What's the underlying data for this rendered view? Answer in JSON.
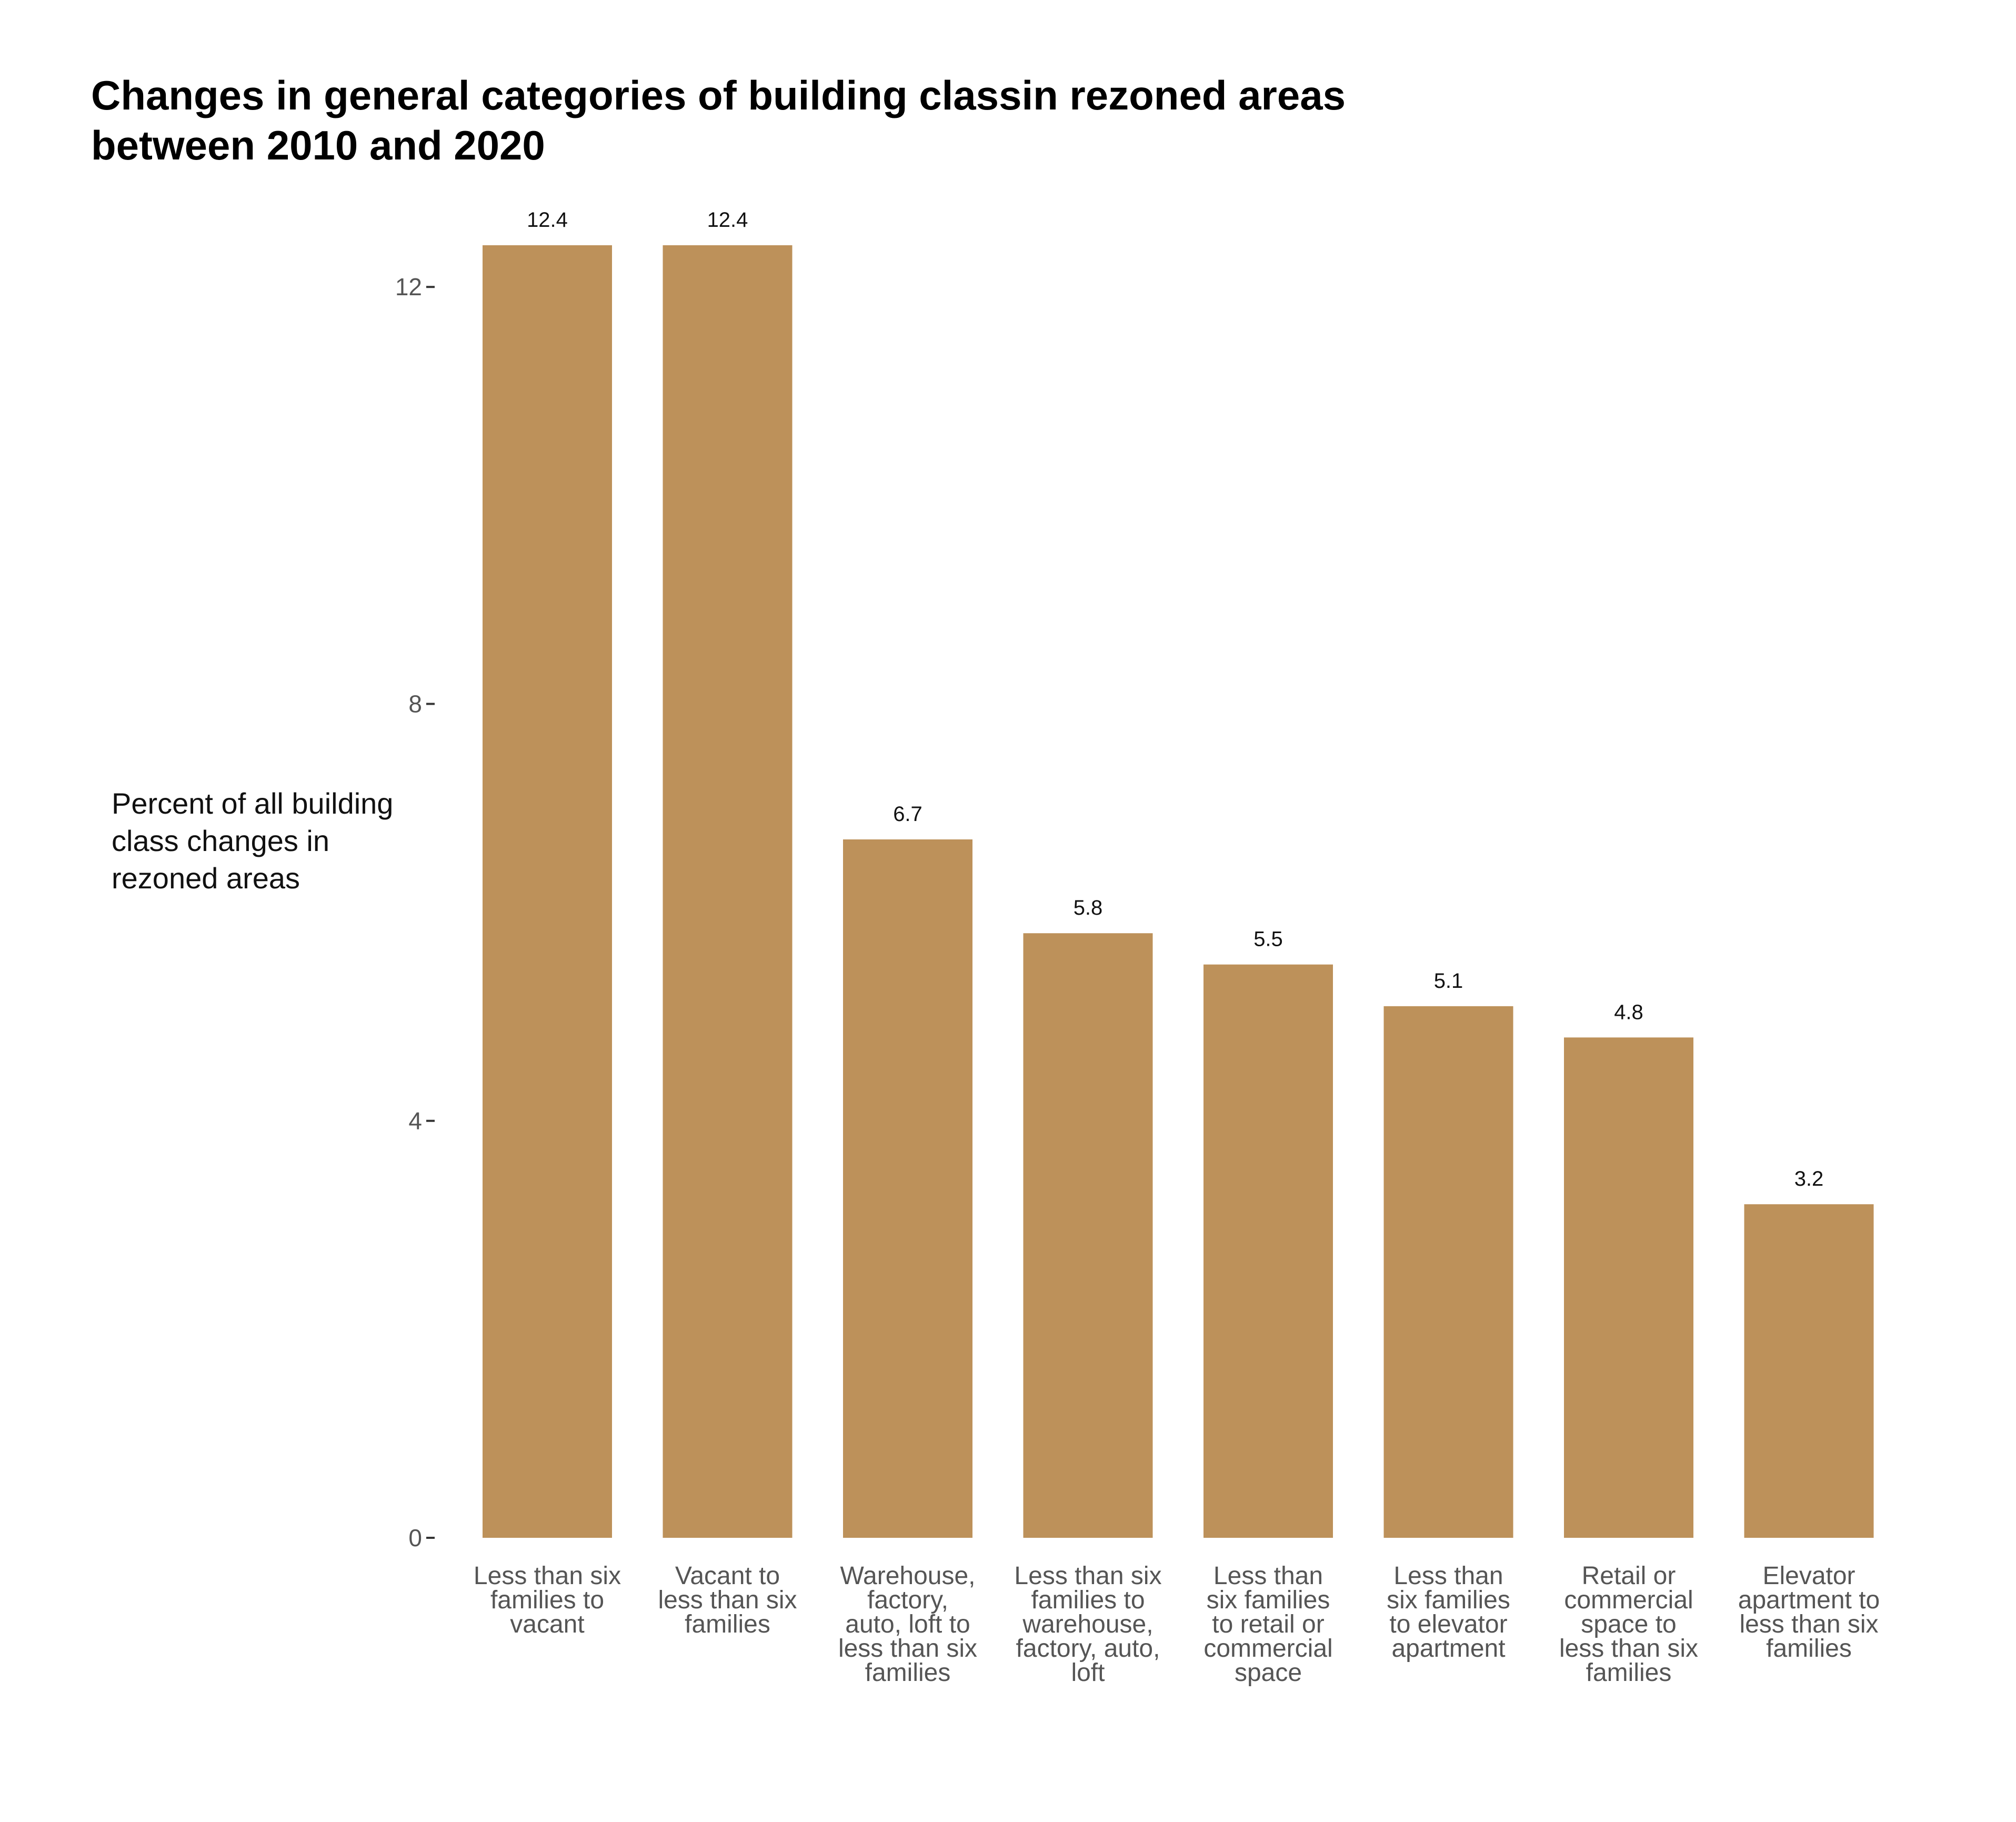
{
  "chart_data": {
    "type": "bar",
    "title": [
      "Changes in general categories of building classin rezoned areas",
      "between 2010 and 2020"
    ],
    "ylabel": [
      "Percent of all building",
      "class changes in",
      "rezoned areas"
    ],
    "xlabel": "",
    "ylim": [
      0,
      12.4
    ],
    "yticks": [
      0,
      4,
      8,
      12
    ],
    "grid": false,
    "legend": "none",
    "bar_color": "#BD915A",
    "categories": [
      [
        "Less than six",
        "families to",
        "vacant"
      ],
      [
        "Vacant to",
        "less than six",
        "families"
      ],
      [
        "Warehouse,",
        "factory,",
        "auto, loft to",
        "less than six",
        "families"
      ],
      [
        "Less than six",
        "families to",
        "warehouse,",
        "factory, auto,",
        "loft"
      ],
      [
        "Less than",
        "six families",
        "to retail or",
        "commercial",
        "space"
      ],
      [
        "Less than",
        "six families",
        "to elevator",
        "apartment"
      ],
      [
        "Retail or",
        "commercial",
        "space to",
        "less than six",
        "families"
      ],
      [
        "Elevator",
        "apartment to",
        "less than six",
        "families"
      ]
    ],
    "values": [
      12.4,
      12.4,
      6.7,
      5.8,
      5.5,
      5.1,
      4.8,
      3.2
    ],
    "value_labels": [
      "12.4",
      "12.4",
      "6.7",
      "5.8",
      "5.5",
      "5.1",
      "4.8",
      "3.2"
    ]
  }
}
